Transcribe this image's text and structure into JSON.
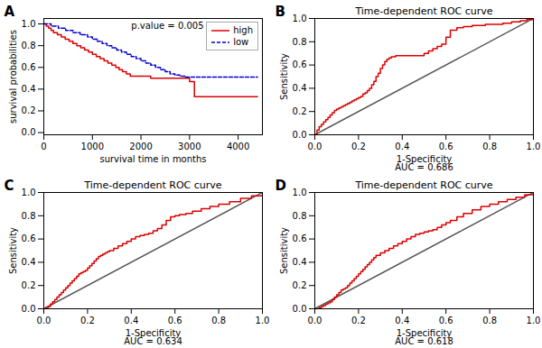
{
  "chart_data": [
    {
      "type": "line",
      "panel_label": "A",
      "xlabel": "survival time in months",
      "ylabel": "survival probabilities",
      "annotations": [
        "p.value = 0.005"
      ],
      "legend": "upper right",
      "series": [
        {
          "name": "high",
          "color": "#dd0000",
          "line_style": "solid",
          "type": "step",
          "x": [
            0,
            50,
            100,
            150,
            200,
            280,
            360,
            440,
            520,
            600,
            680,
            760,
            840,
            920,
            1000,
            1080,
            1160,
            1240,
            1320,
            1400,
            1480,
            1550,
            1620,
            1700,
            1780,
            1860,
            1940,
            2020,
            2100,
            2200,
            2300,
            2400,
            2500,
            2600,
            2700,
            2800,
            2900,
            3000,
            3100,
            3200,
            3300,
            4000,
            4400
          ],
          "values": [
            1.0,
            0.98,
            0.96,
            0.94,
            0.92,
            0.9,
            0.88,
            0.86,
            0.84,
            0.82,
            0.8,
            0.78,
            0.76,
            0.74,
            0.72,
            0.7,
            0.68,
            0.66,
            0.64,
            0.62,
            0.6,
            0.58,
            0.56,
            0.54,
            0.52,
            0.52,
            0.52,
            0.52,
            0.52,
            0.5,
            0.5,
            0.5,
            0.5,
            0.5,
            0.5,
            0.5,
            0.5,
            0.47,
            0.33,
            0.33,
            0.33,
            0.33,
            0.33
          ]
        },
        {
          "name": "low",
          "color": "#0000cc",
          "line_style": "dashed",
          "type": "step",
          "x": [
            0,
            150,
            300,
            450,
            600,
            750,
            900,
            1000,
            1100,
            1200,
            1300,
            1400,
            1500,
            1600,
            1700,
            1800,
            1900,
            2000,
            2100,
            2200,
            2300,
            2400,
            2500,
            2600,
            2700,
            2800,
            2900,
            3000,
            3200,
            3500,
            4000,
            4400
          ],
          "values": [
            1.0,
            0.98,
            0.96,
            0.94,
            0.92,
            0.9,
            0.88,
            0.86,
            0.84,
            0.82,
            0.8,
            0.78,
            0.76,
            0.74,
            0.72,
            0.7,
            0.68,
            0.66,
            0.64,
            0.62,
            0.6,
            0.58,
            0.56,
            0.54,
            0.53,
            0.52,
            0.51,
            0.51,
            0.51,
            0.51,
            0.51,
            0.51
          ]
        }
      ],
      "xlim": [
        0,
        4500
      ],
      "ylim": [
        -0.02,
        1.05
      ],
      "xticks": [
        0,
        1000,
        2000,
        3000,
        4000
      ],
      "yticks": [
        {
          "value": 0.0,
          "label": "0.0"
        },
        0.2,
        0.4,
        0.6,
        0.8,
        {
          "value": 1.0,
          "label": "1.0"
        }
      ]
    },
    {
      "type": "line",
      "panel_label": "B",
      "title": "Time-dependent ROC curve",
      "xlabel": "1-Specificity",
      "ylabel": "Sensitivity",
      "annotations": [
        "AUC = 0.686"
      ],
      "series": [
        {
          "color": "#555555",
          "line_style": "solid",
          "type": "line",
          "x": [
            0,
            1
          ],
          "values": [
            0,
            1
          ]
        },
        {
          "color": "#dd0000",
          "line_style": "solid",
          "type": "step",
          "x": [
            0.0,
            0.01,
            0.02,
            0.03,
            0.04,
            0.05,
            0.06,
            0.07,
            0.08,
            0.09,
            0.1,
            0.11,
            0.12,
            0.13,
            0.14,
            0.15,
            0.16,
            0.17,
            0.18,
            0.19,
            0.2,
            0.21,
            0.22,
            0.23,
            0.24,
            0.25,
            0.26,
            0.27,
            0.28,
            0.29,
            0.3,
            0.31,
            0.32,
            0.33,
            0.34,
            0.35,
            0.36,
            0.37,
            0.38,
            0.39,
            0.4,
            0.41,
            0.42,
            0.43,
            0.44,
            0.45,
            0.46,
            0.47,
            0.48,
            0.5,
            0.52,
            0.54,
            0.56,
            0.58,
            0.6,
            0.62,
            0.65,
            0.68,
            0.7,
            0.72,
            0.75,
            0.78,
            0.82,
            0.86,
            0.9,
            0.94,
            0.97,
            1.0
          ],
          "values": [
            0.0,
            0.04,
            0.07,
            0.09,
            0.11,
            0.13,
            0.15,
            0.17,
            0.19,
            0.21,
            0.22,
            0.23,
            0.24,
            0.25,
            0.26,
            0.27,
            0.28,
            0.29,
            0.3,
            0.31,
            0.32,
            0.33,
            0.35,
            0.36,
            0.38,
            0.4,
            0.43,
            0.46,
            0.5,
            0.53,
            0.57,
            0.6,
            0.63,
            0.65,
            0.66,
            0.67,
            0.67,
            0.68,
            0.68,
            0.68,
            0.68,
            0.68,
            0.68,
            0.68,
            0.68,
            0.68,
            0.68,
            0.68,
            0.68,
            0.7,
            0.72,
            0.74,
            0.76,
            0.78,
            0.84,
            0.9,
            0.92,
            0.93,
            0.93,
            0.94,
            0.94,
            0.95,
            0.95,
            0.96,
            0.97,
            0.98,
            0.99,
            1.0
          ]
        }
      ],
      "xlim": [
        0,
        1.0
      ],
      "ylim": [
        0,
        1.0
      ],
      "xticks": [
        {
          "value": 0.0,
          "label": "0.0"
        },
        0.2,
        0.4,
        0.6,
        0.8,
        {
          "value": 1.0,
          "label": "1.0"
        }
      ],
      "yticks": [
        {
          "value": 0.0,
          "label": "0.0"
        },
        0.2,
        0.4,
        0.6,
        0.8,
        {
          "value": 1.0,
          "label": "1.0"
        }
      ]
    },
    {
      "type": "line",
      "panel_label": "C",
      "title": "Time-dependent ROC curve",
      "xlabel": "1-Specificity",
      "ylabel": "Sensitivity",
      "annotations": [
        "AUC = 0.634"
      ],
      "series": [
        {
          "color": "#555555",
          "line_style": "solid",
          "type": "line",
          "x": [
            0,
            1
          ],
          "values": [
            0,
            1
          ]
        },
        {
          "color": "#dd0000",
          "line_style": "solid",
          "type": "step",
          "x": [
            0.0,
            0.01,
            0.02,
            0.03,
            0.04,
            0.05,
            0.06,
            0.07,
            0.08,
            0.09,
            0.1,
            0.11,
            0.12,
            0.13,
            0.14,
            0.15,
            0.16,
            0.17,
            0.18,
            0.19,
            0.2,
            0.21,
            0.22,
            0.23,
            0.24,
            0.25,
            0.26,
            0.27,
            0.28,
            0.29,
            0.3,
            0.32,
            0.34,
            0.36,
            0.38,
            0.4,
            0.42,
            0.44,
            0.46,
            0.48,
            0.5,
            0.52,
            0.54,
            0.56,
            0.58,
            0.6,
            0.62,
            0.65,
            0.68,
            0.72,
            0.76,
            0.8,
            0.85,
            0.9,
            0.95,
            1.0
          ],
          "values": [
            0.0,
            0.01,
            0.02,
            0.04,
            0.06,
            0.08,
            0.1,
            0.12,
            0.14,
            0.16,
            0.18,
            0.2,
            0.22,
            0.24,
            0.26,
            0.28,
            0.3,
            0.31,
            0.32,
            0.33,
            0.35,
            0.37,
            0.39,
            0.41,
            0.43,
            0.45,
            0.46,
            0.47,
            0.48,
            0.49,
            0.5,
            0.52,
            0.54,
            0.56,
            0.58,
            0.6,
            0.62,
            0.63,
            0.64,
            0.65,
            0.67,
            0.69,
            0.72,
            0.76,
            0.79,
            0.8,
            0.81,
            0.82,
            0.84,
            0.86,
            0.88,
            0.9,
            0.92,
            0.95,
            0.97,
            1.0
          ]
        }
      ],
      "xlim": [
        0,
        1.0
      ],
      "ylim": [
        0,
        1.0
      ],
      "xticks": [
        {
          "value": 0.0,
          "label": "0.0"
        },
        0.2,
        0.4,
        0.6,
        0.8,
        {
          "value": 1.0,
          "label": "1.0"
        }
      ],
      "yticks": [
        {
          "value": 0.0,
          "label": "0.0"
        },
        0.2,
        0.4,
        0.6,
        0.8,
        {
          "value": 1.0,
          "label": "1.0"
        }
      ]
    },
    {
      "type": "line",
      "panel_label": "D",
      "title": "Time-dependent ROC curve",
      "xlabel": "1-Specificity",
      "ylabel": "Sensitivity",
      "annotations": [
        "AUC = 0.618"
      ],
      "series": [
        {
          "color": "#555555",
          "line_style": "solid",
          "type": "line",
          "x": [
            0,
            1
          ],
          "values": [
            0,
            1
          ]
        },
        {
          "color": "#dd0000",
          "line_style": "solid",
          "type": "step",
          "x": [
            0.0,
            0.01,
            0.02,
            0.03,
            0.04,
            0.05,
            0.06,
            0.07,
            0.08,
            0.09,
            0.1,
            0.11,
            0.12,
            0.13,
            0.14,
            0.15,
            0.16,
            0.17,
            0.18,
            0.19,
            0.2,
            0.21,
            0.22,
            0.23,
            0.24,
            0.25,
            0.26,
            0.27,
            0.28,
            0.3,
            0.32,
            0.34,
            0.36,
            0.38,
            0.4,
            0.42,
            0.44,
            0.46,
            0.48,
            0.5,
            0.52,
            0.54,
            0.56,
            0.58,
            0.6,
            0.62,
            0.65,
            0.68,
            0.72,
            0.76,
            0.8,
            0.84,
            0.88,
            0.92,
            0.96,
            1.0
          ],
          "values": [
            0.0,
            0.0,
            0.01,
            0.02,
            0.03,
            0.04,
            0.05,
            0.06,
            0.08,
            0.1,
            0.12,
            0.14,
            0.16,
            0.17,
            0.18,
            0.2,
            0.22,
            0.24,
            0.26,
            0.28,
            0.3,
            0.32,
            0.34,
            0.36,
            0.38,
            0.4,
            0.42,
            0.44,
            0.46,
            0.48,
            0.5,
            0.52,
            0.54,
            0.56,
            0.58,
            0.6,
            0.62,
            0.64,
            0.65,
            0.66,
            0.67,
            0.68,
            0.7,
            0.72,
            0.74,
            0.76,
            0.79,
            0.82,
            0.85,
            0.88,
            0.9,
            0.92,
            0.94,
            0.96,
            0.98,
            1.0
          ]
        }
      ],
      "xlim": [
        0,
        1.0
      ],
      "ylim": [
        0,
        1.0
      ],
      "xticks": [
        {
          "value": 0.0,
          "label": "0.0"
        },
        0.2,
        0.4,
        0.6,
        0.8,
        {
          "value": 1.0,
          "label": "1.0"
        }
      ],
      "yticks": [
        {
          "value": 0.0,
          "label": "0.0"
        },
        0.2,
        0.4,
        0.6,
        0.8,
        {
          "value": 1.0,
          "label": "1.0"
        }
      ]
    }
  ]
}
